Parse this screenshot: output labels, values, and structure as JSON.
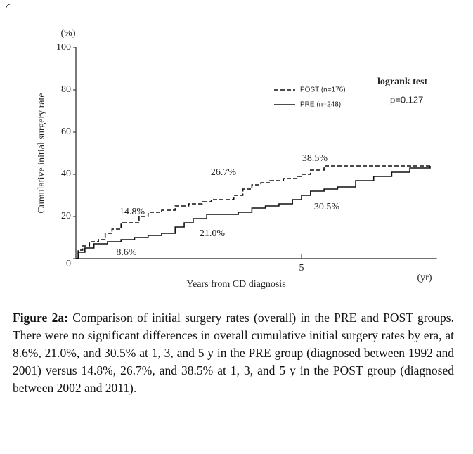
{
  "chart_data": {
    "type": "line",
    "y_unit": "(%)",
    "x_unit": "(yr)",
    "ylabel": "Cumulative initial surgery rate",
    "xlabel": "Years from CD diagnosis",
    "xlim": [
      0,
      8
    ],
    "ylim": [
      0,
      100
    ],
    "xticks": [
      5
    ],
    "yticks": [
      0,
      20,
      40,
      60,
      80,
      100
    ],
    "series": [
      {
        "name": "POST (n=176)",
        "color": "#111111",
        "dashed": true,
        "x": [
          0,
          0.05,
          0.15,
          0.3,
          0.5,
          0.65,
          0.8,
          1.0,
          1.2,
          1.4,
          1.6,
          1.9,
          2.2,
          2.5,
          2.8,
          3.0,
          3.3,
          3.5,
          3.7,
          3.9,
          4.1,
          4.3,
          4.6,
          4.9,
          5.0,
          5.2,
          5.5,
          6.0,
          7.0,
          7.85
        ],
        "values": [
          0,
          4,
          6,
          8,
          9,
          12,
          14,
          17,
          17,
          20,
          22,
          23,
          25,
          26,
          27,
          28,
          28,
          30,
          33,
          35,
          36,
          37,
          38,
          39,
          40,
          42,
          44,
          44,
          44,
          44
        ]
      },
      {
        "name": "PRE (n=248)",
        "color": "#111111",
        "dashed": false,
        "x": [
          0,
          0.05,
          0.2,
          0.4,
          0.7,
          1.0,
          1.3,
          1.6,
          1.9,
          2.2,
          2.4,
          2.6,
          2.9,
          3.3,
          3.6,
          3.9,
          4.2,
          4.5,
          4.8,
          5.0,
          5.2,
          5.5,
          5.8,
          6.2,
          6.6,
          7.0,
          7.4,
          7.85
        ],
        "values": [
          0,
          3,
          5,
          7,
          8,
          9,
          10,
          11,
          12,
          15,
          17,
          19,
          21,
          21,
          22,
          24,
          25,
          26,
          28,
          30,
          32,
          33,
          34,
          37,
          39,
          41,
          43,
          44
        ]
      }
    ],
    "annotations": [
      "14.8%",
      "26.7%",
      "38.5%",
      "8.6%",
      "21.0%",
      "30.5%",
      "logrank test",
      "p=0.127"
    ]
  },
  "caption": {
    "label": "Figure 2a:",
    "text": "Comparison of initial surgery rates (overall) in the PRE and POST groups. There were no significant differences in overall cumulative initial surgery rates by era, at 8.6%, 21.0%, and 30.5% at 1, 3, and 5 y in the PRE group (diagnosed between 1992 and 2001) versus 14.8%, 26.7%, and 38.5% at 1, 3, and 5 y in the POST group (diagnosed between 2002 and 2011)."
  }
}
